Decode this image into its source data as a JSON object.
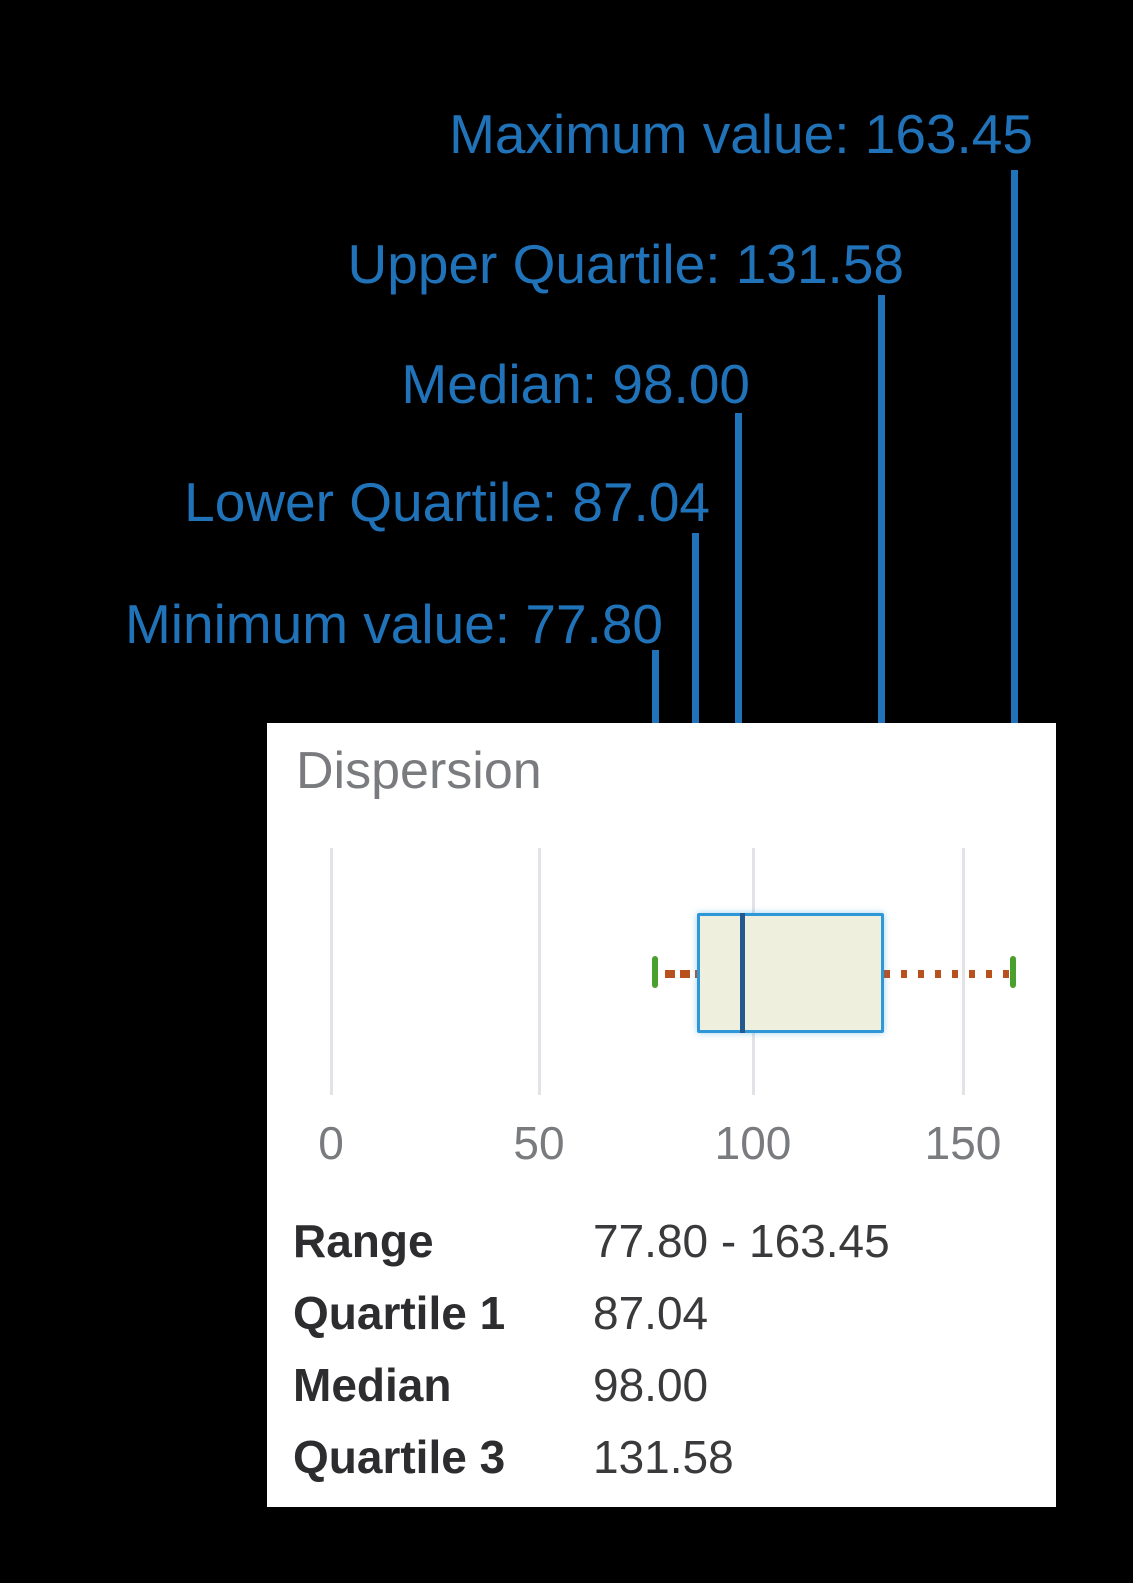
{
  "page": {
    "background": "#000000"
  },
  "annotations": {
    "max": {
      "label": "Maximum value: 163.45"
    },
    "upper": {
      "label": "Upper Quartile: 131.58"
    },
    "median": {
      "label": "Median: 98.00"
    },
    "lower": {
      "label": "Lower Quartile: 87.04"
    },
    "min": {
      "label": "Minimum value: 77.80"
    }
  },
  "panel": {
    "title": "Dispersion",
    "axis_ticks": [
      "0",
      "50",
      "100",
      "150"
    ],
    "table": {
      "rows": [
        {
          "label": "Range",
          "value": "77.80 - 163.45"
        },
        {
          "label": "Quartile 1",
          "value": "87.04"
        },
        {
          "label": "Median",
          "value": "98.00"
        },
        {
          "label": "Quartile 3",
          "value": "131.58"
        }
      ]
    }
  },
  "colors": {
    "annotation_blue": "#2173b9",
    "box_border_blue": "#2e97d8",
    "box_fill": "#eef0dd",
    "median_line_blue": "#23598f",
    "whisker_red": "#b9511f",
    "extreme_tick_green": "#49a02d",
    "panel_background": "#ffffff",
    "gray_text": "#797b7e",
    "table_label_text": "#2d2d2f",
    "table_value_text": "#3a3a3c",
    "gridline_gray": "#e3e3e7"
  },
  "chart_data": {
    "type": "boxplot",
    "title": "Dispersion",
    "orientation": "horizontal",
    "stats": {
      "min": 77.8,
      "q1": 87.04,
      "median": 98.0,
      "q3": 131.58,
      "max": 163.45
    },
    "x_ticks": [
      0,
      50,
      100,
      150
    ],
    "xlim": [
      0,
      172
    ],
    "grid": true,
    "whisker_style": {
      "left": "dashed",
      "right": "dotted",
      "color": "#b9511f",
      "end_caps": "green-tick"
    },
    "annotations": [
      {
        "text": "Maximum value: 163.45",
        "points_to": 163.45
      },
      {
        "text": "Upper Quartile: 131.58",
        "points_to": 131.58
      },
      {
        "text": "Median: 98.00",
        "points_to": 98.0
      },
      {
        "text": "Lower Quartile: 87.04",
        "points_to": 87.04
      },
      {
        "text": "Minimum value: 77.80",
        "points_to": 77.8
      }
    ],
    "summary_table": [
      [
        "Range",
        "77.80 - 163.45"
      ],
      [
        "Quartile 1",
        "87.04"
      ],
      [
        "Median",
        "98.00"
      ],
      [
        "Quartile 3",
        "131.58"
      ]
    ]
  }
}
